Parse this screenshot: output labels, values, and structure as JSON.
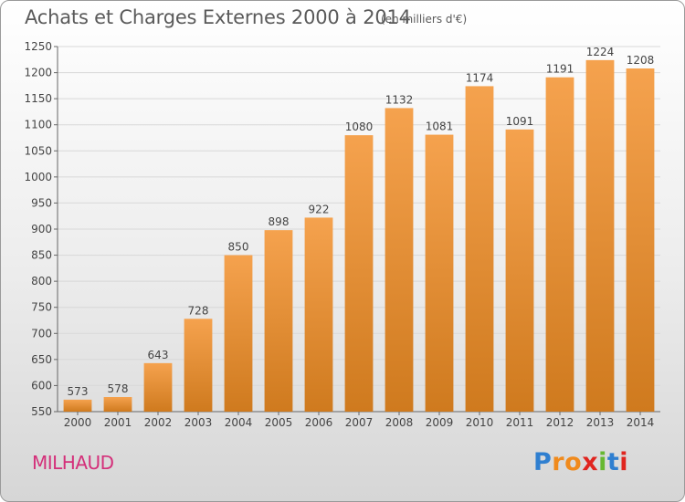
{
  "title": "Achats et Charges Externes 2000 à 2014",
  "subtitle": "(en milliers d'€)",
  "city": "MILHAUD",
  "logo": {
    "letters": [
      "P",
      "r",
      "o",
      "x",
      "i",
      "t",
      "i"
    ],
    "colors": [
      "#2f7fd0",
      "#f08a1c",
      "#f08a1c",
      "#e0251f",
      "#67b832",
      "#2f7fd0",
      "#e0251f"
    ]
  },
  "colors": {
    "bar_top": "#f5a24e",
    "bar_bottom": "#cf7a1e",
    "grid": "#d8d8d8"
  },
  "chart_data": {
    "type": "bar",
    "title": "Achats et Charges Externes 2000 à 2014",
    "subtitle": "(en milliers d'€)",
    "categories": [
      "2000",
      "2001",
      "2002",
      "2003",
      "2004",
      "2005",
      "2006",
      "2007",
      "2008",
      "2009",
      "2010",
      "2011",
      "2012",
      "2013",
      "2014"
    ],
    "values": [
      573,
      578,
      643,
      728,
      850,
      898,
      922,
      1080,
      1132,
      1081,
      1174,
      1091,
      1191,
      1224,
      1208
    ],
    "ylim": [
      550,
      1250
    ],
    "yticks": [
      550,
      600,
      650,
      700,
      750,
      800,
      850,
      900,
      950,
      1000,
      1050,
      1100,
      1150,
      1200,
      1250
    ],
    "grid": true,
    "data_labels": true
  }
}
